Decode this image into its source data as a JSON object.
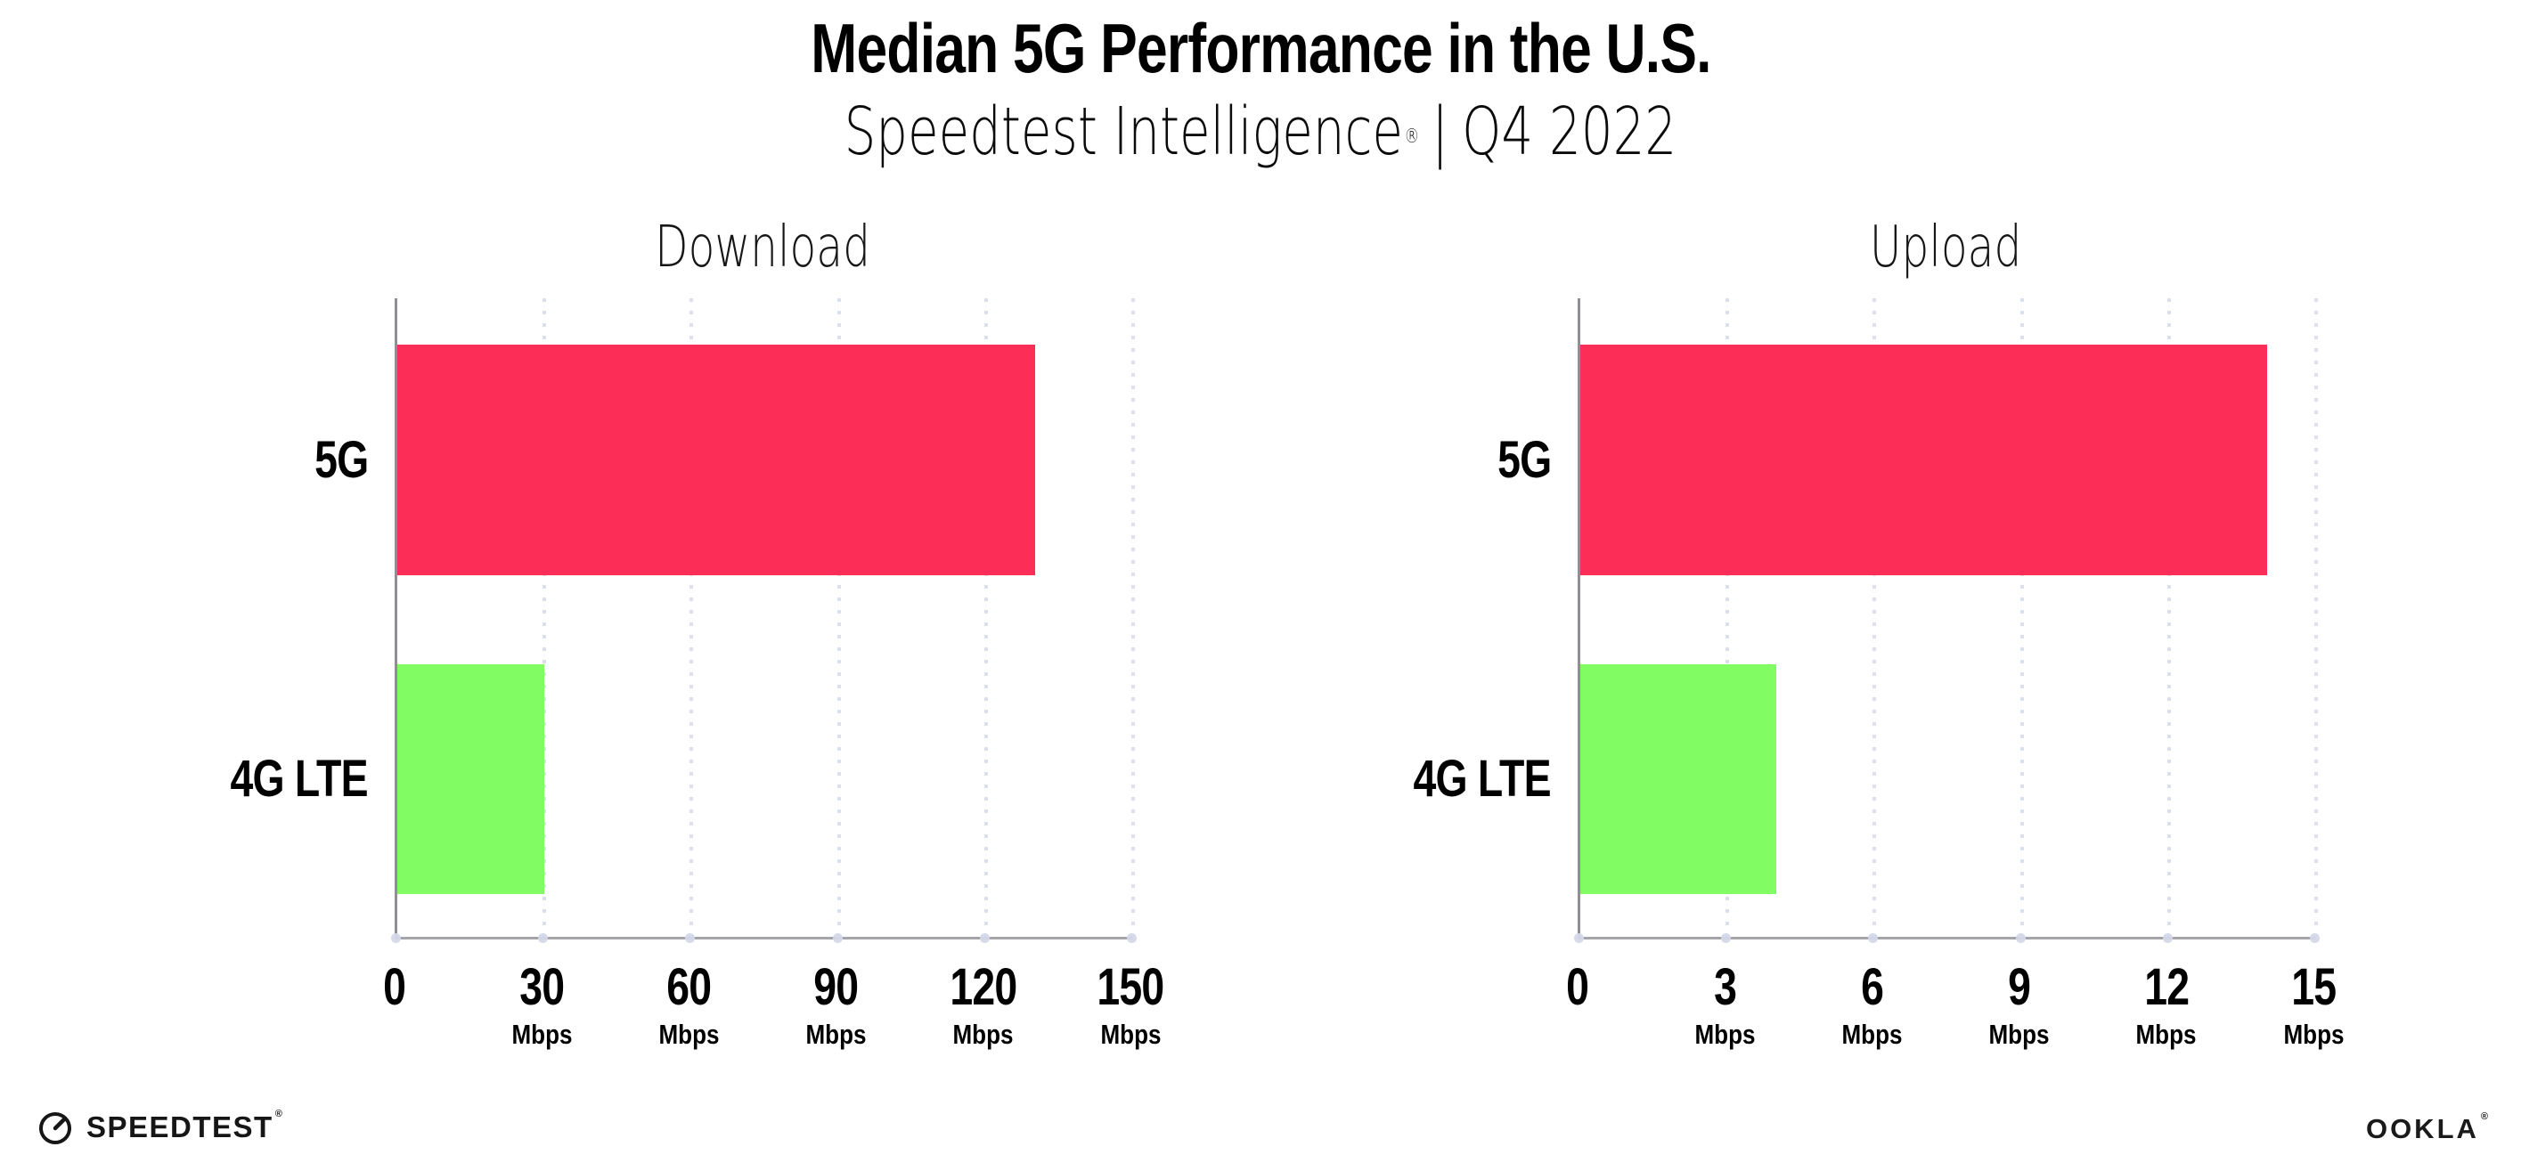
{
  "header": {
    "title": "Median 5G Performance in the U.S.",
    "subtitle": {
      "brand": "Speedtest Intelligence",
      "registered": "®",
      "separator": "|",
      "period": "Q4 2022"
    }
  },
  "chart_data": [
    {
      "type": "bar",
      "orientation": "horizontal",
      "title": "Download",
      "categories": [
        "5G",
        "4G LTE"
      ],
      "values": [
        130,
        30
      ],
      "unit": "Mbps",
      "xlim": [
        0,
        150
      ],
      "xticks": [
        0,
        30,
        60,
        90,
        120,
        150
      ],
      "bar_colors": [
        "#fc2e57",
        "#82fc63"
      ],
      "grid": "dotted-vertical",
      "grid_color": "#dcdfee",
      "axis_color": "#9a9aa1",
      "legend": "none"
    },
    {
      "type": "bar",
      "orientation": "horizontal",
      "title": "Upload",
      "categories": [
        "5G",
        "4G LTE"
      ],
      "values": [
        14,
        4
      ],
      "unit": "Mbps",
      "xlim": [
        0,
        15
      ],
      "xticks": [
        0,
        3,
        6,
        9,
        12,
        15
      ],
      "bar_colors": [
        "#fc2e57",
        "#82fc63"
      ],
      "grid": "dotted-vertical",
      "grid_color": "#dcdfee",
      "axis_color": "#9a9aa1",
      "legend": "none"
    }
  ],
  "footer": {
    "speedtest_logo": {
      "text": "SPEEDTEST",
      "registered": "®",
      "icon": "speedtest-gauge-icon"
    },
    "ookla_logo": {
      "text": "OOKLA",
      "registered": "®"
    }
  },
  "colors": {
    "bar_5g": "#fc2e57",
    "bar_4g_lte": "#82fc63",
    "background": "#ffffff",
    "text": "#000000"
  }
}
